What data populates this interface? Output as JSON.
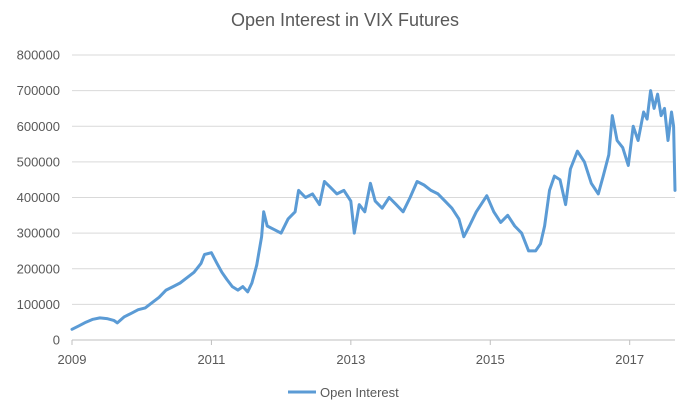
{
  "chart_data": {
    "type": "line",
    "title": "Open Interest in VIX Futures",
    "xlabel": "",
    "ylabel": "",
    "xlim": [
      2009.0,
      2017.65
    ],
    "ylim": [
      0,
      800000
    ],
    "grid": "horizontal",
    "legend_position": "bottom",
    "x_ticks": [
      "2009",
      "2011",
      "2013",
      "2015",
      "2017"
    ],
    "y_ticks": [
      "0",
      "100000",
      "200000",
      "300000",
      "400000",
      "500000",
      "600000",
      "700000",
      "800000"
    ],
    "series": [
      {
        "name": "Open Interest",
        "color": "#5b9bd5",
        "points": [
          [
            2009.0,
            30000
          ],
          [
            2009.1,
            40000
          ],
          [
            2009.2,
            50000
          ],
          [
            2009.3,
            58000
          ],
          [
            2009.4,
            62000
          ],
          [
            2009.5,
            60000
          ],
          [
            2009.6,
            55000
          ],
          [
            2009.65,
            48000
          ],
          [
            2009.75,
            65000
          ],
          [
            2009.85,
            75000
          ],
          [
            2009.95,
            85000
          ],
          [
            2010.05,
            90000
          ],
          [
            2010.15,
            105000
          ],
          [
            2010.25,
            120000
          ],
          [
            2010.35,
            140000
          ],
          [
            2010.45,
            150000
          ],
          [
            2010.55,
            160000
          ],
          [
            2010.65,
            175000
          ],
          [
            2010.75,
            190000
          ],
          [
            2010.85,
            215000
          ],
          [
            2010.9,
            240000
          ],
          [
            2011.0,
            245000
          ],
          [
            2011.08,
            215000
          ],
          [
            2011.15,
            190000
          ],
          [
            2011.22,
            170000
          ],
          [
            2011.3,
            150000
          ],
          [
            2011.38,
            140000
          ],
          [
            2011.45,
            150000
          ],
          [
            2011.52,
            135000
          ],
          [
            2011.58,
            160000
          ],
          [
            2011.65,
            210000
          ],
          [
            2011.72,
            290000
          ],
          [
            2011.75,
            360000
          ],
          [
            2011.8,
            320000
          ],
          [
            2011.9,
            310000
          ],
          [
            2012.0,
            300000
          ],
          [
            2012.1,
            340000
          ],
          [
            2012.2,
            360000
          ],
          [
            2012.25,
            420000
          ],
          [
            2012.35,
            400000
          ],
          [
            2012.45,
            410000
          ],
          [
            2012.55,
            380000
          ],
          [
            2012.62,
            445000
          ],
          [
            2012.7,
            430000
          ],
          [
            2012.8,
            410000
          ],
          [
            2012.9,
            420000
          ],
          [
            2013.0,
            390000
          ],
          [
            2013.05,
            300000
          ],
          [
            2013.12,
            380000
          ],
          [
            2013.2,
            360000
          ],
          [
            2013.28,
            440000
          ],
          [
            2013.35,
            390000
          ],
          [
            2013.45,
            370000
          ],
          [
            2013.55,
            400000
          ],
          [
            2013.65,
            380000
          ],
          [
            2013.75,
            360000
          ],
          [
            2013.85,
            400000
          ],
          [
            2013.95,
            445000
          ],
          [
            2014.05,
            435000
          ],
          [
            2014.15,
            420000
          ],
          [
            2014.25,
            410000
          ],
          [
            2014.35,
            390000
          ],
          [
            2014.45,
            370000
          ],
          [
            2014.55,
            340000
          ],
          [
            2014.62,
            290000
          ],
          [
            2014.7,
            320000
          ],
          [
            2014.8,
            360000
          ],
          [
            2014.9,
            390000
          ],
          [
            2014.95,
            405000
          ],
          [
            2015.05,
            360000
          ],
          [
            2015.15,
            330000
          ],
          [
            2015.25,
            350000
          ],
          [
            2015.35,
            320000
          ],
          [
            2015.45,
            300000
          ],
          [
            2015.55,
            250000
          ],
          [
            2015.65,
            250000
          ],
          [
            2015.72,
            270000
          ],
          [
            2015.78,
            320000
          ],
          [
            2015.85,
            420000
          ],
          [
            2015.92,
            460000
          ],
          [
            2016.0,
            450000
          ],
          [
            2016.08,
            380000
          ],
          [
            2016.15,
            480000
          ],
          [
            2016.25,
            530000
          ],
          [
            2016.35,
            500000
          ],
          [
            2016.45,
            440000
          ],
          [
            2016.55,
            410000
          ],
          [
            2016.62,
            460000
          ],
          [
            2016.7,
            520000
          ],
          [
            2016.75,
            630000
          ],
          [
            2016.82,
            560000
          ],
          [
            2016.9,
            540000
          ],
          [
            2016.98,
            490000
          ],
          [
            2017.05,
            600000
          ],
          [
            2017.12,
            560000
          ],
          [
            2017.2,
            640000
          ],
          [
            2017.25,
            620000
          ],
          [
            2017.3,
            700000
          ],
          [
            2017.35,
            650000
          ],
          [
            2017.4,
            690000
          ],
          [
            2017.45,
            630000
          ],
          [
            2017.5,
            650000
          ],
          [
            2017.55,
            560000
          ],
          [
            2017.6,
            640000
          ],
          [
            2017.63,
            600000
          ],
          [
            2017.65,
            420000
          ]
        ]
      }
    ]
  }
}
